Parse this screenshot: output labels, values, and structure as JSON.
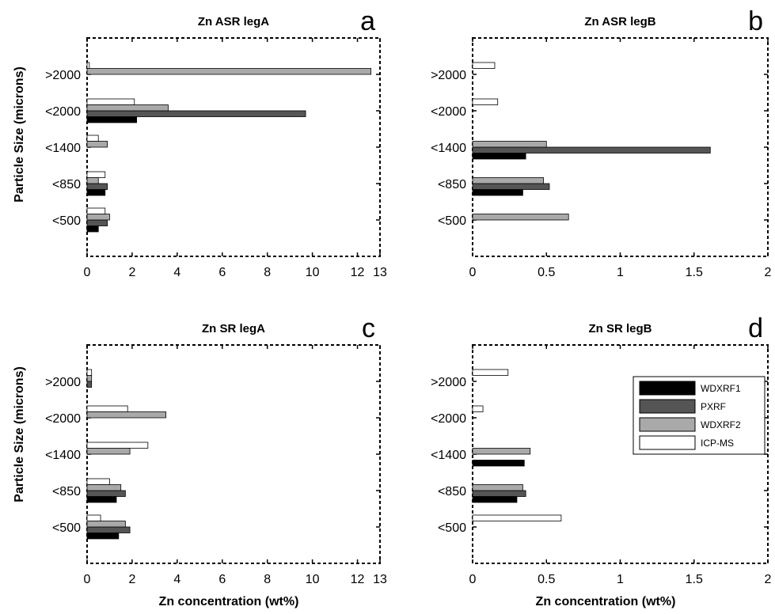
{
  "figure": {
    "ylabel": "Particle Size (microns)",
    "xlabel": "Zn concentration (wt%)"
  },
  "legend": [
    {
      "name": "WDXRF1",
      "color": "#000000"
    },
    {
      "name": "PXRF",
      "color": "#555555"
    },
    {
      "name": "WDXRF2",
      "color": "#a9a9a9"
    },
    {
      "name": "ICP-MS",
      "color": "#ffffff"
    }
  ],
  "chart_data": [
    {
      "type": "bar",
      "orientation": "horizontal",
      "title": "Zn ASR legA",
      "panel": "a",
      "categories": [
        ">2000",
        "<2000",
        "<1400",
        "<850",
        "<500"
      ],
      "xticks": [
        "0",
        "2",
        "4",
        "6",
        "8",
        "10",
        "12",
        "13"
      ],
      "xtick_values": [
        0,
        2,
        4,
        6,
        8,
        10,
        12,
        13
      ],
      "xlim": [
        0,
        13
      ],
      "series": [
        {
          "name": "WDXRF1",
          "values": [
            0,
            2.2,
            0,
            0.8,
            0.5
          ]
        },
        {
          "name": "PXRF",
          "values": [
            0,
            9.7,
            0,
            0.9,
            0.9
          ]
        },
        {
          "name": "WDXRF2",
          "values": [
            12.6,
            3.6,
            0.9,
            0.5,
            1.0
          ]
        },
        {
          "name": "ICP-MS",
          "values": [
            0.1,
            2.1,
            0.5,
            0.8,
            0.8
          ]
        }
      ]
    },
    {
      "type": "bar",
      "orientation": "horizontal",
      "title": "Zn ASR legB",
      "panel": "b",
      "categories": [
        ">2000",
        "<2000",
        "<1400",
        "<850",
        "<500"
      ],
      "xticks": [
        "0",
        "0.5",
        "1",
        "1.5",
        "2"
      ],
      "xtick_values": [
        0,
        0.5,
        1,
        1.5,
        2
      ],
      "xlim": [
        0,
        2
      ],
      "series": [
        {
          "name": "WDXRF1",
          "values": [
            0,
            0,
            0.36,
            0.34,
            0
          ]
        },
        {
          "name": "PXRF",
          "values": [
            0,
            0,
            1.61,
            0.52,
            0
          ]
        },
        {
          "name": "WDXRF2",
          "values": [
            0,
            0,
            0.5,
            0.48,
            0.65
          ]
        },
        {
          "name": "ICP-MS",
          "values": [
            0.15,
            0.17,
            0,
            0,
            0
          ]
        }
      ]
    },
    {
      "type": "bar",
      "orientation": "horizontal",
      "title": "Zn SR legA",
      "panel": "c",
      "categories": [
        ">2000",
        "<2000",
        "<1400",
        "<850",
        "<500"
      ],
      "xticks": [
        "0",
        "2",
        "4",
        "6",
        "8",
        "10",
        "12",
        "13"
      ],
      "xtick_values": [
        0,
        2,
        4,
        6,
        8,
        10,
        12,
        13
      ],
      "xlim": [
        0,
        13
      ],
      "series": [
        {
          "name": "WDXRF1",
          "values": [
            0,
            0,
            0,
            1.3,
            1.4
          ]
        },
        {
          "name": "PXRF",
          "values": [
            0.2,
            0,
            0,
            1.7,
            1.9
          ]
        },
        {
          "name": "WDXRF2",
          "values": [
            0.2,
            3.5,
            1.9,
            1.5,
            1.7
          ]
        },
        {
          "name": "ICP-MS",
          "values": [
            0.2,
            1.8,
            2.7,
            1.0,
            0.6
          ]
        }
      ]
    },
    {
      "type": "bar",
      "orientation": "horizontal",
      "title": "Zn SR legB",
      "panel": "d",
      "categories": [
        ">2000",
        "<2000",
        "<1400",
        "<850",
        "<500"
      ],
      "xticks": [
        "0",
        "0.5",
        "1",
        "1.5",
        "2"
      ],
      "xtick_values": [
        0,
        0.5,
        1,
        1.5,
        2
      ],
      "xlim": [
        0,
        2
      ],
      "series": [
        {
          "name": "WDXRF1",
          "values": [
            0,
            0,
            0.35,
            0.3,
            0
          ]
        },
        {
          "name": "PXRF",
          "values": [
            0,
            0,
            0,
            0.36,
            0
          ]
        },
        {
          "name": "WDXRF2",
          "values": [
            0,
            0,
            0.39,
            0.34,
            0
          ]
        },
        {
          "name": "ICP-MS",
          "values": [
            0.24,
            0.07,
            0,
            0,
            0.6
          ]
        }
      ]
    }
  ]
}
